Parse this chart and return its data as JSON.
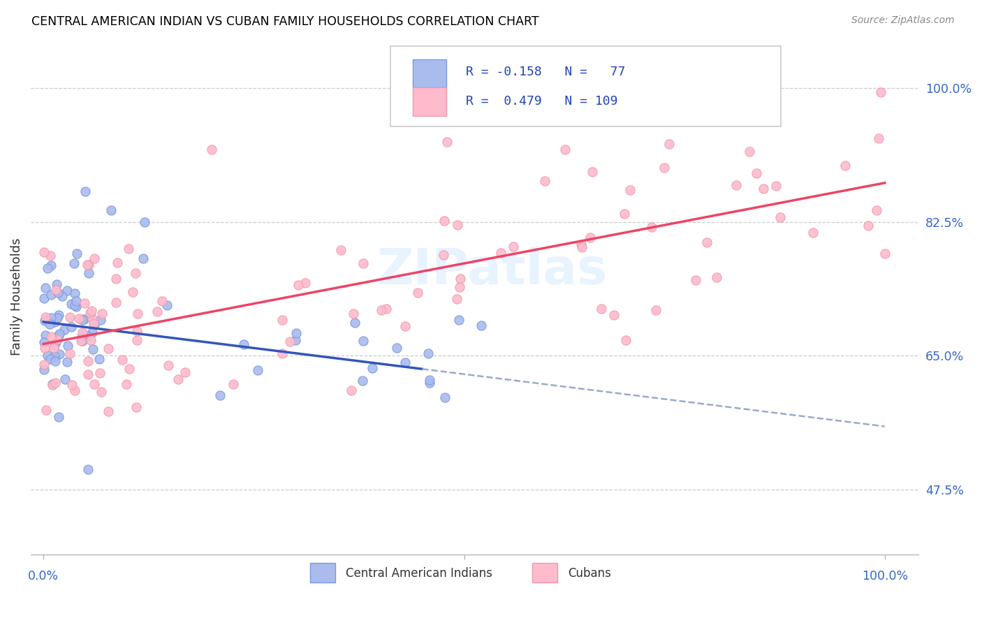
{
  "title": "CENTRAL AMERICAN INDIAN VS CUBAN FAMILY HOUSEHOLDS CORRELATION CHART",
  "source": "Source: ZipAtlas.com",
  "ylabel": "Family Households",
  "ytick_labels": [
    "47.5%",
    "65.0%",
    "82.5%",
    "100.0%"
  ],
  "ytick_values": [
    0.475,
    0.65,
    0.825,
    1.0
  ],
  "color_blue_fill": "#AABBEE",
  "color_blue_edge": "#7799DD",
  "color_pink_fill": "#FFBBCC",
  "color_pink_edge": "#EE99AA",
  "color_blue_line": "#3355BB",
  "color_blue_dashed": "#99AACC",
  "color_pink_line": "#EE4466",
  "color_ytick": "#3366CC",
  "watermark_color": "#DDEEFF",
  "watermark_text": "ZIPatlas",
  "legend_line1": "R = -0.158   N =   77",
  "legend_line2": "R =  0.479   N = 109"
}
